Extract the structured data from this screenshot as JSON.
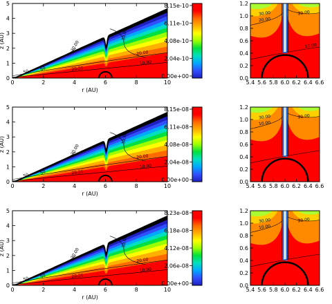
{
  "chart_data": [
    {
      "type": "contour",
      "panel": "main-row-1",
      "xlabel": "r (AU)",
      "ylabel": "z (AU)",
      "xlim": [
        0,
        10
      ],
      "ylim": [
        0,
        5
      ],
      "x_ticks": [
        "0",
        "2",
        "4",
        "6",
        "8",
        "10"
      ],
      "y_ticks": [
        "0",
        "1",
        "2",
        "3",
        "4",
        "5"
      ],
      "contour_labels": [
        "10.00",
        "20.00",
        "20.00",
        "30.00",
        "30.00",
        "50",
        "50"
      ],
      "colorbar": {
        "ticks": [
          "8.15e-10",
          "6.11e-10",
          "4.08e-10",
          "2.04e-10",
          "0.00e+00"
        ],
        "range": [
          0.0,
          8.15e-10
        ]
      }
    },
    {
      "type": "contour",
      "panel": "zoom-row-1",
      "xlim": [
        5.4,
        6.6
      ],
      "ylim": [
        0,
        1.2
      ],
      "x_ticks": [
        "5.4",
        "5.6",
        "5.8",
        "6.0",
        "6.2",
        "6.4",
        "6.6"
      ],
      "y_ticks": [
        "0.0",
        "0.2",
        "0.4",
        "0.6",
        "0.8",
        "1.0",
        "1.2"
      ],
      "contour_labels": [
        "30.00",
        "20.00",
        "20.00",
        "10.00"
      ]
    },
    {
      "type": "contour",
      "panel": "main-row-2",
      "xlabel": "r (AU)",
      "ylabel": "z (AU)",
      "xlim": [
        0,
        10
      ],
      "ylim": [
        0,
        5
      ],
      "x_ticks": [
        "0",
        "2",
        "4",
        "6",
        "8",
        "10"
      ],
      "y_ticks": [
        "0",
        "1",
        "2",
        "3",
        "4",
        "5"
      ],
      "contour_labels": [
        "10.00",
        "20.00",
        "20.00",
        "30.00",
        "30.00",
        "50",
        "50"
      ],
      "colorbar": {
        "ticks": [
          "8.15e-08",
          "6.11e-08",
          "4.08e-08",
          "2.04e-08",
          "0.00e+00"
        ],
        "range": [
          0.0,
          8.15e-08
        ]
      }
    },
    {
      "type": "contour",
      "panel": "zoom-row-2",
      "xlim": [
        5.4,
        6.6
      ],
      "ylim": [
        0,
        1.2
      ],
      "x_ticks": [
        "5.4",
        "5.6",
        "5.8",
        "6.0",
        "6.2",
        "6.4",
        "6.6"
      ],
      "y_ticks": [
        "0.0",
        "0.2",
        "0.4",
        "0.6",
        "0.8",
        "1.0",
        "1.2"
      ],
      "contour_labels": [
        "30.00",
        "20.00",
        "10.00"
      ]
    },
    {
      "type": "contour",
      "panel": "main-row-3",
      "xlabel": "r (AU)",
      "ylabel": "z (AU)",
      "xlim": [
        0,
        10
      ],
      "ylim": [
        0,
        5
      ],
      "x_ticks": [
        "0",
        "2",
        "4",
        "6",
        "8",
        "10"
      ],
      "y_ticks": [
        "0",
        "1",
        "2",
        "3",
        "4",
        "5"
      ],
      "contour_labels": [
        "10.00",
        "20.00",
        "20.00",
        "30.00",
        "30.00",
        "50",
        "50"
      ],
      "colorbar": {
        "ticks": [
          "8.23e-08",
          "6.18e-08",
          "4.12e-08",
          "2.06e-08",
          "0.00e+00"
        ],
        "range": [
          0.0,
          8.23e-08
        ]
      }
    },
    {
      "type": "contour",
      "panel": "zoom-row-3",
      "xlim": [
        5.4,
        6.6
      ],
      "ylim": [
        0,
        1.2
      ],
      "x_ticks": [
        "5.4",
        "5.6",
        "5.8",
        "6.0",
        "6.2",
        "6.4",
        "6.6"
      ],
      "y_ticks": [
        "0.0",
        "0.2",
        "0.4",
        "0.6",
        "0.8",
        "1.0",
        "1.2"
      ],
      "contour_labels": [
        "30.00",
        "20.00",
        "10.00"
      ]
    }
  ],
  "colors": {
    "scale": [
      "#ff0000",
      "#ff6a00",
      "#ffb000",
      "#ffff00",
      "#9cff00",
      "#00e040",
      "#00e0c0",
      "#00a8ff",
      "#3050ff",
      "#2020c0",
      "#000000"
    ],
    "axis": "#000000",
    "background": "#ffffff"
  }
}
